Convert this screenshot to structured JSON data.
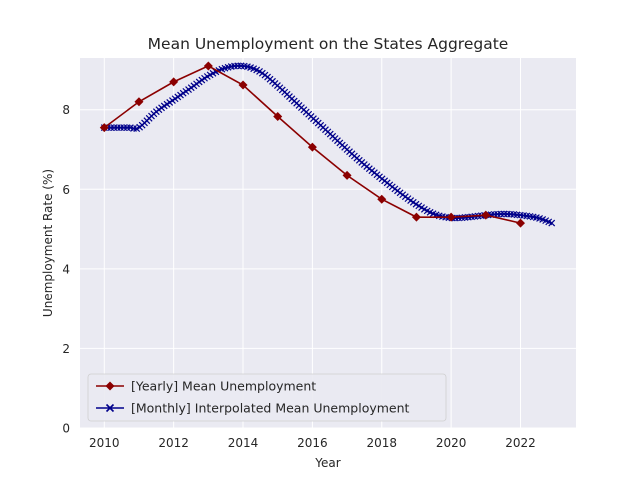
{
  "chart_data": {
    "type": "line",
    "title": "Mean Unemployment on the States Aggregate",
    "xlabel": "Year",
    "ylabel": "Unemployment Rate (%)",
    "xlim": [
      2009.3,
      2023.6
    ],
    "ylim": [
      0,
      9.3
    ],
    "xticks": [
      2010,
      2012,
      2014,
      2016,
      2018,
      2020,
      2022
    ],
    "yticks": [
      0,
      2,
      4,
      6,
      8
    ],
    "grid": true,
    "legend_position": "lower-left",
    "series": [
      {
        "name": "[Yearly] Mean Unemployment",
        "color": "#8b0000",
        "marker": "diamond",
        "x": [
          2010,
          2011,
          2012,
          2013,
          2014,
          2015,
          2016,
          2017,
          2018,
          2019,
          2020,
          2021,
          2022
        ],
        "y": [
          7.55,
          8.2,
          8.7,
          9.1,
          8.62,
          7.83,
          7.06,
          6.35,
          5.75,
          5.3,
          5.3,
          5.35,
          5.15
        ]
      },
      {
        "name": "[Monthly] Interpolated Mean Unemployment",
        "color": "#00008b",
        "marker": "x",
        "x": [
          2010,
          2010.25,
          2010.5,
          2010.75,
          2011,
          2011.5,
          2012,
          2012.5,
          2013,
          2013.5,
          2014,
          2014.5,
          2015,
          2015.5,
          2016,
          2016.5,
          2017,
          2017.5,
          2018,
          2018.5,
          2019,
          2019.5,
          2020,
          2020.5,
          2021,
          2021.5,
          2022,
          2022.5,
          2022.9
        ],
        "y": [
          7.55,
          7.55,
          7.55,
          7.55,
          7.55,
          7.95,
          8.25,
          8.55,
          8.85,
          9.05,
          9.1,
          8.95,
          8.6,
          8.2,
          7.8,
          7.4,
          7.0,
          6.62,
          6.27,
          5.93,
          5.62,
          5.38,
          5.28,
          5.3,
          5.35,
          5.38,
          5.35,
          5.28,
          5.15
        ]
      }
    ]
  }
}
